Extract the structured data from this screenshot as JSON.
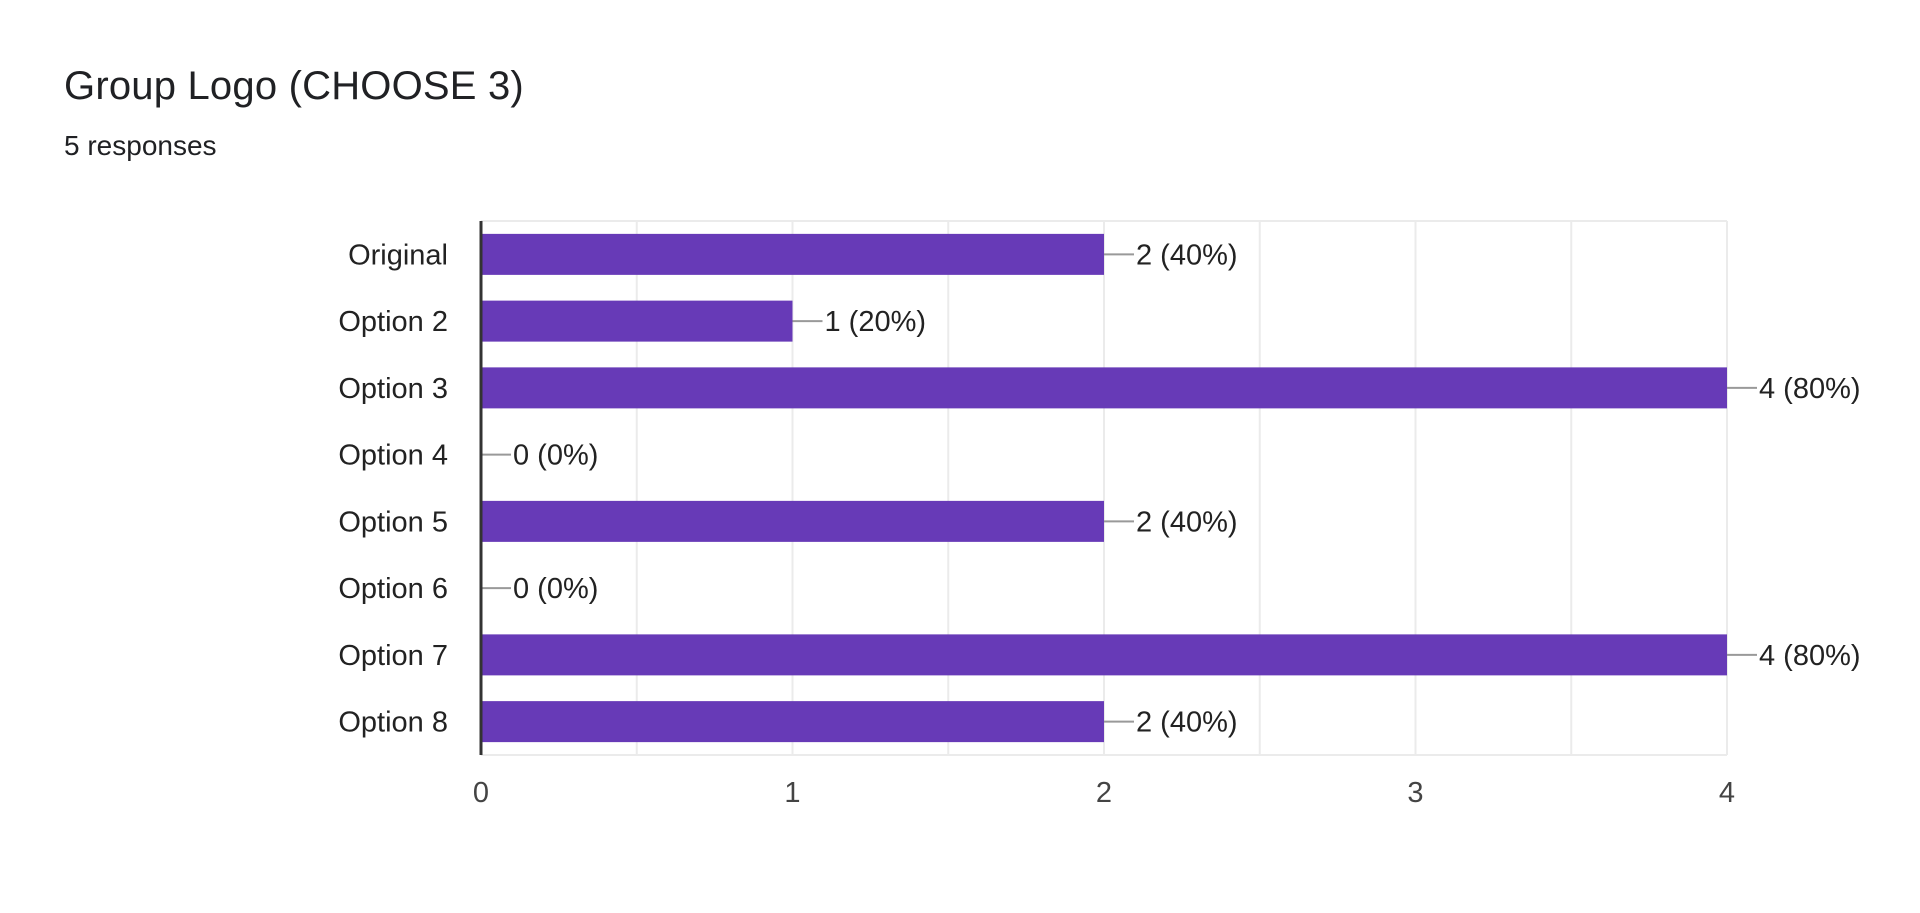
{
  "header": {
    "title": "Group Logo (CHOOSE 3)",
    "subtitle": "5 responses"
  },
  "colors": {
    "bar": "#673ab7",
    "grid": "#ebebeb",
    "axis": "#333333",
    "leader": "#999999"
  },
  "chart_data": {
    "type": "bar",
    "orientation": "horizontal",
    "categories": [
      "Original",
      "Option 2",
      "Option 3",
      "Option 4",
      "Option 5",
      "Option 6",
      "Option 7",
      "Option 8"
    ],
    "values": [
      2,
      1,
      4,
      0,
      2,
      0,
      4,
      2
    ],
    "data_labels": [
      "2 (40%)",
      "1 (20%)",
      "4 (80%)",
      "0 (0%)",
      "2 (40%)",
      "0 (0%)",
      "4 (80%)",
      "2 (40%)"
    ],
    "xlim": [
      0,
      4
    ],
    "xticks": [
      0,
      1,
      2,
      3,
      4
    ],
    "grid": true,
    "legend": "none"
  }
}
